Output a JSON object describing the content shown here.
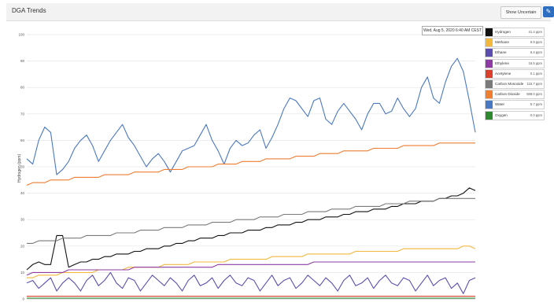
{
  "header": {
    "title": "DGA Trends",
    "uncertain_button": "Show Uncertain",
    "edit_icon": "pencil-icon"
  },
  "date_label": "Wed, Aug 5, 2020 6:40 AM CEST",
  "legend": [
    {
      "name": "Hydrogen",
      "value": "41.4 ppm",
      "color": "#111111"
    },
    {
      "name": "Methane",
      "value": "9.9 ppm",
      "color": "#f4b73e"
    },
    {
      "name": "Ethane",
      "value": "6.4 ppm",
      "color": "#5c4db1"
    },
    {
      "name": "Ethylene",
      "value": "16.5 ppm",
      "color": "#8e3ba3"
    },
    {
      "name": "Acetylene",
      "value": "0.1 ppm",
      "color": "#d9412c"
    },
    {
      "name": "Carbon Monoxide",
      "value": "115.7 ppm",
      "color": "#7a7a7a"
    },
    {
      "name": "Carbon Dioxide",
      "value": "688.0 ppm",
      "color": "#ee7d31"
    },
    {
      "name": "Water",
      "value": "5.7 ppm",
      "color": "#4a78c2"
    },
    {
      "name": "Oxygen",
      "value": "0.0 ppm",
      "color": "#2f8a2f"
    }
  ],
  "chart_data": {
    "type": "line",
    "ylabel": "Hydrogen (ppm)",
    "ylim": [
      0,
      100
    ],
    "yticks": [
      "100",
      "90",
      "80",
      "70",
      "60",
      "50",
      "40",
      "30",
      "20",
      "10",
      "0"
    ],
    "grid": true,
    "legend_position": "right",
    "series": [
      {
        "name": "Water",
        "color": "#4a78c2",
        "values": [
          53,
          51,
          60,
          65,
          63,
          47,
          49,
          52,
          57,
          60,
          62,
          58,
          52,
          56,
          60,
          63,
          66,
          61,
          58,
          54,
          50,
          53,
          55,
          52,
          48,
          52,
          56,
          57,
          58,
          62,
          66,
          60,
          56,
          51,
          57,
          60,
          58,
          59,
          62,
          64,
          57,
          61,
          66,
          72,
          76,
          75,
          72,
          69,
          75,
          76,
          68,
          66,
          71,
          74,
          71,
          68,
          64,
          70,
          74,
          74,
          70,
          71,
          76,
          72,
          69,
          72,
          80,
          84,
          76,
          74,
          82,
          88,
          91,
          86,
          75,
          63
        ]
      },
      {
        "name": "Carbon Dioxide",
        "color": "#ee7d31",
        "values": [
          43,
          44,
          44,
          44,
          45,
          45,
          45,
          45,
          46,
          46,
          46,
          46,
          46,
          47,
          47,
          47,
          47,
          47,
          48,
          48,
          48,
          48,
          48,
          49,
          49,
          49,
          49,
          50,
          50,
          50,
          50,
          50,
          51,
          51,
          51,
          51,
          52,
          52,
          52,
          52,
          53,
          53,
          53,
          53,
          53,
          54,
          54,
          54,
          54,
          55,
          55,
          55,
          55,
          56,
          56,
          56,
          56,
          56,
          57,
          57,
          57,
          57,
          57,
          58,
          58,
          58,
          58,
          58,
          58,
          59,
          59,
          59,
          59,
          59,
          59,
          59
        ]
      },
      {
        "name": "Hydrogen",
        "color": "#111111",
        "values": [
          11,
          13,
          14,
          13,
          13,
          24,
          24,
          12,
          13,
          14,
          14,
          15,
          15,
          16,
          16,
          17,
          17,
          17,
          18,
          18,
          19,
          19,
          19,
          20,
          20,
          21,
          21,
          22,
          22,
          23,
          23,
          23,
          24,
          24,
          25,
          25,
          25,
          26,
          26,
          26,
          27,
          27,
          28,
          28,
          28,
          29,
          29,
          30,
          30,
          30,
          31,
          31,
          31,
          32,
          32,
          33,
          33,
          33,
          34,
          34,
          34,
          35,
          35,
          36,
          36,
          36,
          37,
          37,
          37,
          38,
          38,
          39,
          39,
          40,
          42,
          41
        ]
      },
      {
        "name": "Carbon Monoxide",
        "color": "#7a7a7a",
        "values": [
          21,
          21,
          22,
          22,
          22,
          22,
          23,
          23,
          23,
          23,
          24,
          24,
          24,
          24,
          24,
          25,
          25,
          25,
          25,
          26,
          26,
          26,
          26,
          27,
          27,
          27,
          27,
          28,
          28,
          28,
          28,
          29,
          29,
          29,
          29,
          30,
          30,
          30,
          30,
          31,
          31,
          31,
          31,
          32,
          32,
          32,
          32,
          33,
          33,
          33,
          33,
          34,
          34,
          34,
          34,
          35,
          35,
          35,
          35,
          35,
          36,
          36,
          36,
          36,
          37,
          37,
          37,
          37,
          37,
          38,
          38,
          38,
          38,
          38,
          38,
          38
        ]
      },
      {
        "name": "Methane",
        "color": "#f4b73e",
        "values": [
          8,
          8,
          9,
          9,
          9,
          9,
          10,
          10,
          10,
          10,
          10,
          10,
          11,
          11,
          11,
          11,
          11,
          12,
          12,
          12,
          12,
          12,
          12,
          13,
          13,
          13,
          13,
          13,
          14,
          14,
          14,
          14,
          14,
          14,
          15,
          15,
          15,
          15,
          15,
          15,
          15,
          16,
          16,
          16,
          16,
          16,
          16,
          17,
          17,
          17,
          17,
          17,
          17,
          17,
          17,
          18,
          18,
          18,
          18,
          18,
          18,
          18,
          18,
          19,
          19,
          19,
          19,
          19,
          19,
          19,
          19,
          19,
          19,
          20,
          20,
          19
        ]
      },
      {
        "name": "Ethylene",
        "color": "#8e3ba3",
        "values": [
          9,
          10,
          10,
          10,
          10,
          10,
          10,
          11,
          11,
          11,
          11,
          11,
          11,
          11,
          11,
          11,
          11,
          11,
          12,
          12,
          12,
          12,
          12,
          12,
          12,
          12,
          12,
          12,
          12,
          12,
          12,
          12,
          13,
          13,
          13,
          13,
          13,
          13,
          13,
          13,
          13,
          13,
          13,
          13,
          13,
          13,
          13,
          13,
          14,
          14,
          14,
          14,
          14,
          14,
          14,
          14,
          14,
          14,
          14,
          14,
          14,
          14,
          14,
          14,
          14,
          14,
          14,
          14,
          14,
          14,
          14,
          14,
          14,
          14,
          14,
          14
        ]
      },
      {
        "name": "Ethane",
        "color": "#5c4db1",
        "values": [
          6,
          7,
          4,
          6,
          8,
          3,
          6,
          8,
          6,
          3,
          7,
          9,
          5,
          7,
          10,
          6,
          4,
          8,
          7,
          3,
          6,
          9,
          7,
          5,
          8,
          6,
          3,
          7,
          9,
          5,
          6,
          8,
          4,
          7,
          9,
          6,
          5,
          8,
          7,
          3,
          6,
          9,
          5,
          7,
          8,
          4,
          6,
          9,
          7,
          5,
          8,
          6,
          3,
          7,
          9,
          5,
          6,
          8,
          4,
          7,
          9,
          6,
          5,
          8,
          7,
          3,
          6,
          9,
          5,
          7,
          8,
          4,
          6,
          2,
          7,
          8
        ]
      },
      {
        "name": "Acetylene",
        "color": "#d9412c",
        "values": [
          1,
          1,
          1,
          1,
          1,
          1,
          1,
          1,
          1,
          1,
          1,
          1,
          1,
          1,
          1,
          1,
          1,
          1,
          1,
          1,
          1,
          1,
          1,
          1,
          1,
          1,
          1,
          1,
          1,
          1,
          1,
          1,
          1,
          1,
          1,
          1,
          1,
          1,
          1,
          1,
          1,
          1,
          1,
          1,
          1,
          1,
          1,
          1,
          1,
          1,
          1,
          1,
          1,
          1,
          1,
          1,
          1,
          1,
          1,
          1,
          1,
          1,
          1,
          1,
          1,
          1,
          1,
          1,
          1,
          1,
          1,
          1,
          1,
          1,
          1,
          1
        ]
      },
      {
        "name": "Oxygen",
        "color": "#2f8a2f",
        "values": [
          0.3,
          0.3,
          0.3,
          0.3,
          0.3,
          0.3,
          0.3,
          0.3,
          0.3,
          0.3,
          0.3,
          0.3,
          0.3,
          0.3,
          0.3,
          0.3,
          0.3,
          0.3,
          0.3,
          0.3,
          0.3,
          0.3,
          0.3,
          0.3,
          0.3,
          0.3,
          0.3,
          0.3,
          0.3,
          0.3,
          0.3,
          0.3,
          0.3,
          0.3,
          0.3,
          0.3,
          0.3,
          0.3,
          0.3,
          0.3,
          0.3,
          0.3,
          0.3,
          0.3,
          0.3,
          0.3,
          0.3,
          0.3,
          0.3,
          0.3,
          0.3,
          0.3,
          0.3,
          0.3,
          0.3,
          0.3,
          0.3,
          0.3,
          0.3,
          0.3,
          0.3,
          0.3,
          0.3,
          0.3,
          0.3,
          0.3,
          0.3,
          0.3,
          0.3,
          0.3,
          0.3,
          0.3,
          0.3,
          0.3,
          0.3,
          0.3
        ]
      }
    ]
  }
}
